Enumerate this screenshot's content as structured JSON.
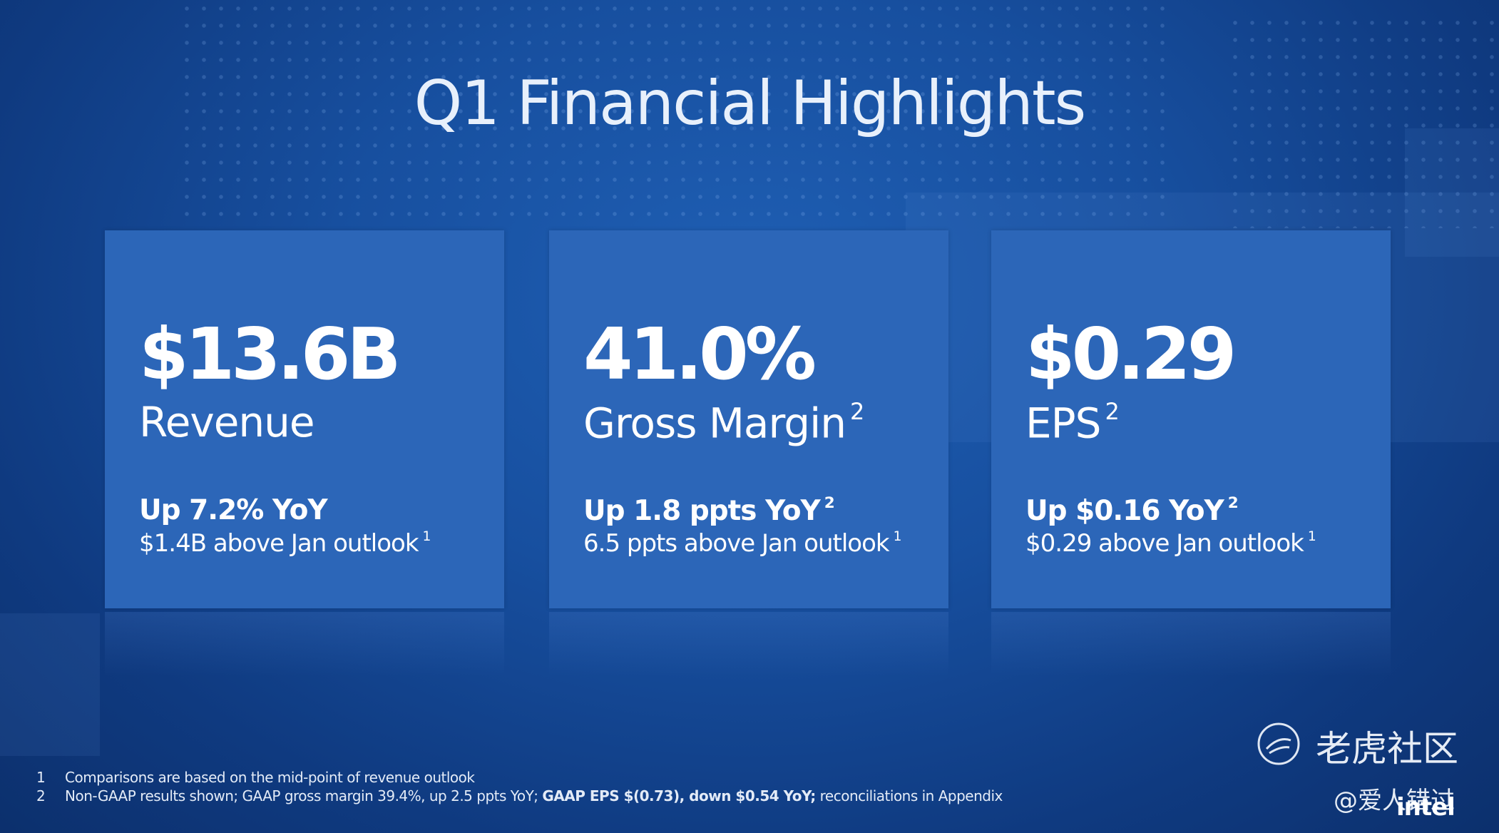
{
  "title": "Q1 Financial Highlights",
  "cards": [
    {
      "value": "$13.6B",
      "label": "Revenue",
      "change": "Up 7.2% YoY",
      "outlook": "$1.4B above Jan outlook",
      "outlook_note": "1"
    },
    {
      "value": "41.0%",
      "label": "Gross Margin",
      "label_note": "2",
      "change": "Up 1.8 ppts YoY",
      "change_note": "2",
      "outlook": "6.5 ppts above Jan outlook",
      "outlook_note": "1"
    },
    {
      "value": "$0.29",
      "label": "EPS",
      "label_note": "2",
      "change": "Up $0.16 YoY",
      "change_note": "2",
      "outlook": "$0.29 above Jan outlook",
      "outlook_note": "1"
    }
  ],
  "footnotes": [
    {
      "number": "1",
      "parts": [
        {
          "text": "Comparisons are based on the mid-point of revenue outlook",
          "bold": false
        }
      ]
    },
    {
      "number": "2",
      "parts": [
        {
          "text": "Non-GAAP results shown; GAAP gross margin 39.4%, up 2.5 ppts YoY; ",
          "bold": false
        },
        {
          "text": "GAAP EPS $(0.73), down $0.54 YoY;",
          "bold": true
        },
        {
          "text": " reconciliations in Appendix",
          "bold": false
        }
      ]
    }
  ],
  "watermark": {
    "brand": "老虎社区",
    "user": "@爱人错过"
  },
  "logo": "intel"
}
